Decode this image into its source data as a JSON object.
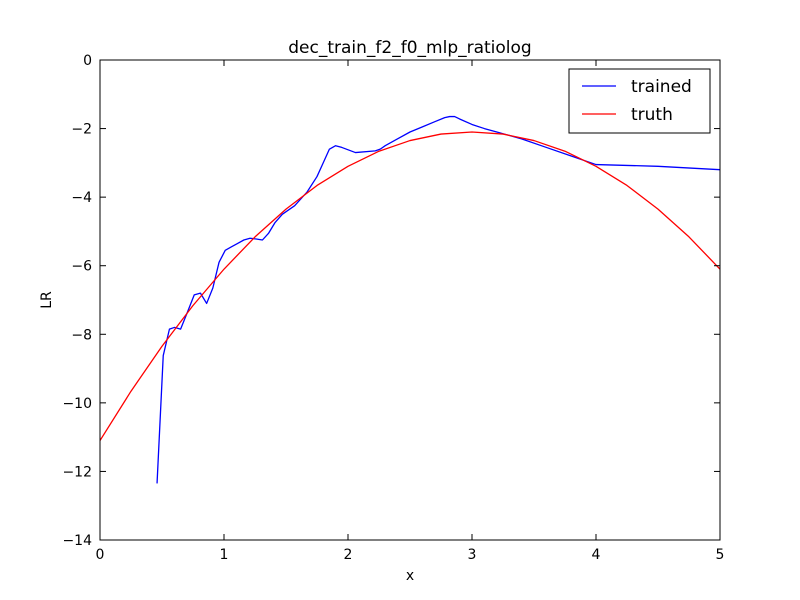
{
  "chart_data": {
    "type": "line",
    "title": "dec_train_f2_f0_mlp_ratiolog",
    "xlabel": "x",
    "ylabel": "LR",
    "xlim": [
      0,
      5
    ],
    "ylim": [
      -14,
      0
    ],
    "x_ticks": [
      0,
      1,
      2,
      3,
      4,
      5
    ],
    "x_tick_labels": [
      "0",
      "1",
      "2",
      "3",
      "4",
      "5"
    ],
    "y_ticks": [
      0,
      -2,
      -4,
      -6,
      -8,
      -10,
      -12,
      -14
    ],
    "y_tick_labels": [
      "0",
      "−2",
      "−4",
      "−6",
      "−8",
      "−10",
      "−12",
      "−14"
    ],
    "grid": false,
    "legend_position": "top-right",
    "series": [
      {
        "name": "trained",
        "color": "#0000ff",
        "x": [
          0.46,
          0.51,
          0.56,
          0.6,
          0.65,
          0.7,
          0.76,
          0.81,
          0.86,
          0.91,
          0.96,
          1.01,
          1.06,
          1.11,
          1.16,
          1.21,
          1.26,
          1.31,
          1.36,
          1.41,
          1.47,
          1.57,
          1.67,
          1.75,
          1.8,
          1.85,
          1.9,
          1.95,
          2.06,
          2.22,
          2.26,
          2.3,
          2.4,
          2.5,
          2.6,
          2.7,
          2.78,
          2.82,
          2.86,
          2.9,
          3.0,
          3.1,
          3.2,
          3.4,
          3.6,
          3.8,
          4.0,
          4.5,
          5.0
        ],
        "y": [
          -12.35,
          -8.62,
          -7.85,
          -7.8,
          -7.85,
          -7.4,
          -6.85,
          -6.8,
          -7.1,
          -6.65,
          -5.9,
          -5.55,
          -5.45,
          -5.35,
          -5.25,
          -5.2,
          -5.22,
          -5.25,
          -5.05,
          -4.75,
          -4.5,
          -4.25,
          -3.85,
          -3.4,
          -3.0,
          -2.6,
          -2.5,
          -2.55,
          -2.7,
          -2.65,
          -2.6,
          -2.5,
          -2.3,
          -2.1,
          -1.95,
          -1.8,
          -1.68,
          -1.65,
          -1.65,
          -1.72,
          -1.88,
          -2.0,
          -2.1,
          -2.3,
          -2.55,
          -2.8,
          -3.05,
          -3.1,
          -3.2
        ]
      },
      {
        "name": "truth",
        "color": "#ff0000",
        "function": "-2.1 - 1.0 * (x - 3)^2",
        "x": [
          0,
          0.25,
          0.5,
          0.75,
          1.0,
          1.25,
          1.5,
          1.75,
          2.0,
          2.25,
          2.5,
          2.75,
          3.0,
          3.25,
          3.5,
          3.75,
          4.0,
          4.25,
          4.5,
          4.75,
          5.0
        ],
        "y": [
          -11.1,
          -9.66,
          -8.35,
          -7.16,
          -6.1,
          -5.16,
          -4.35,
          -3.66,
          -3.1,
          -2.66,
          -2.35,
          -2.16,
          -2.1,
          -2.16,
          -2.35,
          -2.66,
          -3.1,
          -3.66,
          -4.35,
          -5.16,
          -6.1
        ]
      }
    ]
  }
}
